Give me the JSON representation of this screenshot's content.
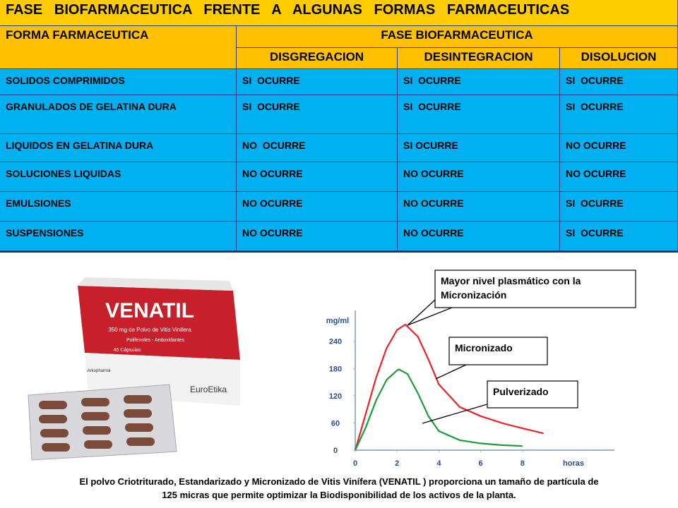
{
  "table": {
    "title": "FASE   BIOFARMACEUTICA   FRENTE   A   ALGUNAS   FORMAS   FARMACEUTICAS",
    "header": [
      "FORMA FARMACEUTICA",
      "FASE BIOFARMACEUTICA"
    ],
    "subheader": [
      "DISGREGACION",
      "DESINTEGRACION",
      "DISOLUCION"
    ],
    "rows": [
      [
        "SOLIDOS COMPRIMIDOS",
        "SI  OCURRE",
        "SI  OCURRE",
        "SI  OCURRE"
      ],
      [
        "GRANULADOS DE GELATINA DURA",
        "SI  OCURRE",
        "SI  OCURRE",
        "SI  OCURRE"
      ],
      [
        "LIQUIDOS EN GELATINA DURA",
        "NO  OCURRE",
        "SI OCURRE",
        "NO OCURRE"
      ],
      [
        "SOLUCIONES LIQUIDAS",
        "NO OCURRE",
        "NO OCURRE",
        "NO OCURRE"
      ],
      [
        "EMULSIONES",
        "NO OCURRE",
        "NO OCURRE",
        "SI  OCURRE"
      ],
      [
        "SUSPENSIONES",
        "NO OCURRE",
        "NO OCURRE",
        "SI  OCURRE"
      ]
    ]
  },
  "product": {
    "brand": "VENATIL",
    "dose": "350 mg de Polvo de Vitis Vinifera",
    "claim": "Polifenoles - Antioxidantes",
    "count": "45 Cápsulas",
    "maker": "EuroEtika",
    "lab": "Arkopharma"
  },
  "chart_data": {
    "type": "line",
    "ylabel": "mg/ml",
    "xlabel": "horas",
    "xlim": [
      0,
      12.4
    ],
    "ylim": [
      0,
      308
    ],
    "xticks": [
      0,
      2,
      4,
      6,
      8
    ],
    "yticks": [
      0,
      60,
      120,
      180,
      240
    ],
    "series": [
      {
        "name": "Micronizado",
        "color": "#e8242a",
        "x": [
          0,
          0.5,
          1,
          1.5,
          2,
          2.4,
          3,
          3.5,
          4,
          5,
          6,
          7,
          8,
          9
        ],
        "values": [
          0,
          80,
          160,
          225,
          265,
          277,
          250,
          200,
          145,
          95,
          75,
          60,
          48,
          37
        ]
      },
      {
        "name": "Pulverizado",
        "color": "#1f9a3a",
        "x": [
          0,
          0.5,
          1,
          1.5,
          2,
          2.1,
          2.5,
          3,
          3.5,
          4,
          5,
          6,
          7,
          8
        ],
        "values": [
          0,
          50,
          110,
          155,
          176,
          178,
          168,
          125,
          75,
          42,
          22,
          15,
          11,
          9
        ]
      }
    ],
    "annotations": [
      "Mayor nivel plasmático con la Micronización"
    ]
  },
  "caption": [
    "El polvo Criotriturado, Estandarizado y Micronizado  de Vitis Vinífera (VENATIL ) proporciona un tamaño de partícula de",
    "125  micras  que permite optimizar la Biodisponibilidad de los activos de la planta."
  ]
}
